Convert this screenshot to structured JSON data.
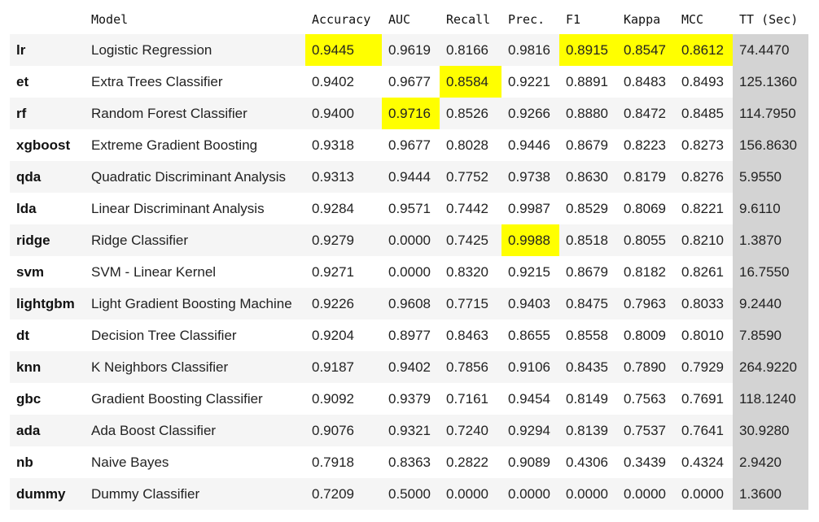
{
  "table": {
    "columns": [
      "",
      "Model",
      "Accuracy",
      "AUC",
      "Recall",
      "Prec.",
      "F1",
      "Kappa",
      "MCC",
      "TT (Sec)"
    ],
    "rows": [
      {
        "id": "lr",
        "model": "Logistic Regression",
        "values": [
          "0.9445",
          "0.9619",
          "0.8166",
          "0.9816",
          "0.8915",
          "0.8547",
          "0.8612",
          "74.4470"
        ],
        "highlight": [
          true,
          false,
          false,
          false,
          true,
          true,
          true,
          false
        ]
      },
      {
        "id": "et",
        "model": "Extra Trees Classifier",
        "values": [
          "0.9402",
          "0.9677",
          "0.8584",
          "0.9221",
          "0.8891",
          "0.8483",
          "0.8493",
          "125.1360"
        ],
        "highlight": [
          false,
          false,
          true,
          false,
          false,
          false,
          false,
          false
        ]
      },
      {
        "id": "rf",
        "model": "Random Forest Classifier",
        "values": [
          "0.9400",
          "0.9716",
          "0.8526",
          "0.9266",
          "0.8880",
          "0.8472",
          "0.8485",
          "114.7950"
        ],
        "highlight": [
          false,
          true,
          false,
          false,
          false,
          false,
          false,
          false
        ]
      },
      {
        "id": "xgboost",
        "model": "Extreme Gradient Boosting",
        "values": [
          "0.9318",
          "0.9677",
          "0.8028",
          "0.9446",
          "0.8679",
          "0.8223",
          "0.8273",
          "156.8630"
        ],
        "highlight": [
          false,
          false,
          false,
          false,
          false,
          false,
          false,
          false
        ]
      },
      {
        "id": "qda",
        "model": "Quadratic Discriminant Analysis",
        "values": [
          "0.9313",
          "0.9444",
          "0.7752",
          "0.9738",
          "0.8630",
          "0.8179",
          "0.8276",
          "5.9550"
        ],
        "highlight": [
          false,
          false,
          false,
          false,
          false,
          false,
          false,
          false
        ]
      },
      {
        "id": "lda",
        "model": "Linear Discriminant Analysis",
        "values": [
          "0.9284",
          "0.9571",
          "0.7442",
          "0.9987",
          "0.8529",
          "0.8069",
          "0.8221",
          "9.6110"
        ],
        "highlight": [
          false,
          false,
          false,
          false,
          false,
          false,
          false,
          false
        ]
      },
      {
        "id": "ridge",
        "model": "Ridge Classifier",
        "values": [
          "0.9279",
          "0.0000",
          "0.7425",
          "0.9988",
          "0.8518",
          "0.8055",
          "0.8210",
          "1.3870"
        ],
        "highlight": [
          false,
          false,
          false,
          true,
          false,
          false,
          false,
          false
        ]
      },
      {
        "id": "svm",
        "model": "SVM - Linear Kernel",
        "values": [
          "0.9271",
          "0.0000",
          "0.8320",
          "0.9215",
          "0.8679",
          "0.8182",
          "0.8261",
          "16.7550"
        ],
        "highlight": [
          false,
          false,
          false,
          false,
          false,
          false,
          false,
          false
        ]
      },
      {
        "id": "lightgbm",
        "model": "Light Gradient Boosting Machine",
        "values": [
          "0.9226",
          "0.9608",
          "0.7715",
          "0.9403",
          "0.8475",
          "0.7963",
          "0.8033",
          "9.2440"
        ],
        "highlight": [
          false,
          false,
          false,
          false,
          false,
          false,
          false,
          false
        ]
      },
      {
        "id": "dt",
        "model": "Decision Tree Classifier",
        "values": [
          "0.9204",
          "0.8977",
          "0.8463",
          "0.8655",
          "0.8558",
          "0.8009",
          "0.8010",
          "7.8590"
        ],
        "highlight": [
          false,
          false,
          false,
          false,
          false,
          false,
          false,
          false
        ]
      },
      {
        "id": "knn",
        "model": "K Neighbors Classifier",
        "values": [
          "0.9187",
          "0.9402",
          "0.7856",
          "0.9106",
          "0.8435",
          "0.7890",
          "0.7929",
          "264.9220"
        ],
        "highlight": [
          false,
          false,
          false,
          false,
          false,
          false,
          false,
          false
        ]
      },
      {
        "id": "gbc",
        "model": "Gradient Boosting Classifier",
        "values": [
          "0.9092",
          "0.9379",
          "0.7161",
          "0.9454",
          "0.8149",
          "0.7563",
          "0.7691",
          "118.1240"
        ],
        "highlight": [
          false,
          false,
          false,
          false,
          false,
          false,
          false,
          false
        ]
      },
      {
        "id": "ada",
        "model": "Ada Boost Classifier",
        "values": [
          "0.9076",
          "0.9321",
          "0.7240",
          "0.9294",
          "0.8139",
          "0.7537",
          "0.7641",
          "30.9280"
        ],
        "highlight": [
          false,
          false,
          false,
          false,
          false,
          false,
          false,
          false
        ]
      },
      {
        "id": "nb",
        "model": "Naive Bayes",
        "values": [
          "0.7918",
          "0.8363",
          "0.2822",
          "0.9089",
          "0.4306",
          "0.3439",
          "0.4324",
          "2.9420"
        ],
        "highlight": [
          false,
          false,
          false,
          false,
          false,
          false,
          false,
          false
        ]
      },
      {
        "id": "dummy",
        "model": "Dummy Classifier",
        "values": [
          "0.7209",
          "0.5000",
          "0.0000",
          "0.0000",
          "0.0000",
          "0.0000",
          "0.0000",
          "1.3600"
        ],
        "highlight": [
          false,
          false,
          false,
          false,
          false,
          false,
          false,
          false
        ]
      }
    ],
    "colors": {
      "highlight": "#ffff00",
      "tt_column": "#d3d3d3",
      "row_stripe": "#f5f5f5"
    }
  }
}
